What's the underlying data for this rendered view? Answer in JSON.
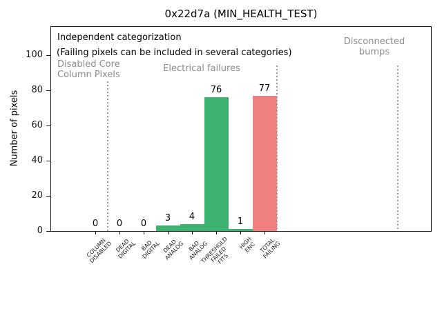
{
  "colors": {
    "bar_green": "#3cb371",
    "bar_red": "#f08080",
    "section_gray": "#8c8c8c",
    "separator_gray": "#999999",
    "axis_black": "#1a1a1a"
  },
  "chart_data": {
    "type": "bar",
    "title": "0x22d7a (MIN_HEALTH_TEST)",
    "xlabel": "",
    "ylabel": "Number of pixels",
    "categories": [
      "COLUMN\nDISABLED",
      "DEAD\nDIGITAL",
      "BAD\nDIGITAL",
      "DEAD\nANALOG",
      "BAD\nANALOG",
      "THRESHOLD\nFAILED\nFITS",
      "HIGH\nENC",
      "TOTAL\nFAILING"
    ],
    "values": [
      0,
      0,
      0,
      3,
      4,
      76,
      1,
      77
    ],
    "bar_colors": [
      "#3cb371",
      "#3cb371",
      "#3cb371",
      "#3cb371",
      "#3cb371",
      "#3cb371",
      "#3cb371",
      "#f08080"
    ],
    "bar_width": 1.0,
    "yticks": [
      0,
      20,
      40,
      60,
      80,
      100
    ],
    "ylim": [
      0,
      116
    ],
    "grid": false,
    "legend": "none",
    "separators_at": [
      0.5,
      7.5,
      12.5
    ],
    "annotations": {
      "header": "Independent categorization",
      "subheader": "(Failing pixels can be included in several categories)",
      "sections": [
        "Disabled Core\nColumn Pixels",
        "Electrical failures",
        "Disconnected\nbumps"
      ]
    }
  }
}
